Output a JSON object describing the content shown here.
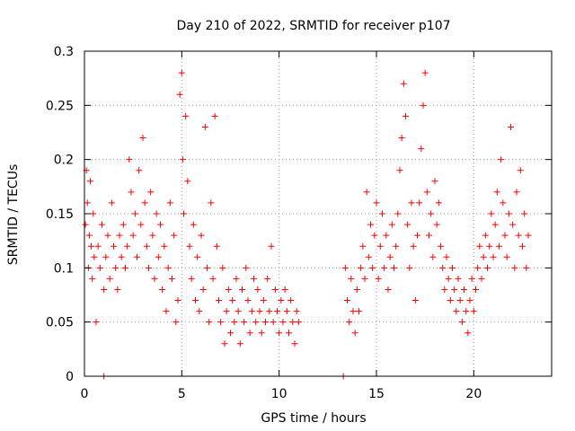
{
  "chart_data": {
    "type": "scatter",
    "title": "Day 210 of 2022, SRMTID for receiver p107",
    "xlabel": "GPS time / hours",
    "ylabel": "SRMTID / TECUs",
    "xlim": [
      0,
      24
    ],
    "ylim": [
      0,
      0.3
    ],
    "x_ticks": [
      0,
      5,
      10,
      15,
      20
    ],
    "x_tick_labels": [
      "0",
      "5",
      "10",
      "15",
      "20"
    ],
    "y_ticks": [
      0,
      0.05,
      0.1,
      0.15,
      0.2,
      0.25,
      0.3
    ],
    "y_tick_labels": [
      "0",
      "0.05",
      "0.1",
      "0.15",
      "0.2",
      "0.25",
      "0.3"
    ],
    "grid": true,
    "marker": "+",
    "color": "#ff0000",
    "series": [
      {
        "name": "SRMTID",
        "points": [
          [
            0.05,
            0.14
          ],
          [
            0.1,
            0.19
          ],
          [
            0.15,
            0.16
          ],
          [
            0.2,
            0.1
          ],
          [
            0.25,
            0.13
          ],
          [
            0.3,
            0.18
          ],
          [
            0.35,
            0.12
          ],
          [
            0.4,
            0.09
          ],
          [
            0.45,
            0.15
          ],
          [
            0.5,
            0.11
          ],
          [
            0.6,
            0.05
          ],
          [
            0.7,
            0.12
          ],
          [
            0.8,
            0.1
          ],
          [
            0.9,
            0.14
          ],
          [
            1.0,
            0.08
          ],
          [
            1.0,
            0.0
          ],
          [
            1.1,
            0.11
          ],
          [
            1.2,
            0.13
          ],
          [
            1.3,
            0.09
          ],
          [
            1.4,
            0.16
          ],
          [
            1.5,
            0.12
          ],
          [
            1.6,
            0.1
          ],
          [
            1.7,
            0.08
          ],
          [
            1.8,
            0.13
          ],
          [
            1.9,
            0.11
          ],
          [
            2.0,
            0.14
          ],
          [
            2.1,
            0.1
          ],
          [
            2.2,
            0.12
          ],
          [
            2.3,
            0.2
          ],
          [
            2.4,
            0.17
          ],
          [
            2.5,
            0.13
          ],
          [
            2.6,
            0.15
          ],
          [
            2.7,
            0.11
          ],
          [
            2.8,
            0.19
          ],
          [
            2.9,
            0.14
          ],
          [
            3.0,
            0.22
          ],
          [
            3.1,
            0.16
          ],
          [
            3.2,
            0.12
          ],
          [
            3.3,
            0.1
          ],
          [
            3.4,
            0.17
          ],
          [
            3.5,
            0.13
          ],
          [
            3.6,
            0.09
          ],
          [
            3.7,
            0.15
          ],
          [
            3.8,
            0.11
          ],
          [
            3.9,
            0.14
          ],
          [
            4.0,
            0.08
          ],
          [
            4.1,
            0.12
          ],
          [
            4.2,
            0.06
          ],
          [
            4.3,
            0.1
          ],
          [
            4.4,
            0.16
          ],
          [
            4.5,
            0.09
          ],
          [
            4.6,
            0.13
          ],
          [
            4.7,
            0.05
          ],
          [
            4.8,
            0.07
          ],
          [
            4.9,
            0.26
          ],
          [
            5.0,
            0.28
          ],
          [
            5.05,
            0.2
          ],
          [
            5.1,
            0.15
          ],
          [
            5.2,
            0.24
          ],
          [
            5.3,
            0.18
          ],
          [
            5.4,
            0.12
          ],
          [
            5.5,
            0.09
          ],
          [
            5.6,
            0.14
          ],
          [
            5.7,
            0.07
          ],
          [
            5.8,
            0.11
          ],
          [
            5.9,
            0.06
          ],
          [
            6.0,
            0.13
          ],
          [
            6.1,
            0.08
          ],
          [
            6.2,
            0.23
          ],
          [
            6.3,
            0.1
          ],
          [
            6.4,
            0.05
          ],
          [
            6.5,
            0.16
          ],
          [
            6.6,
            0.09
          ],
          [
            6.7,
            0.24
          ],
          [
            6.8,
            0.12
          ],
          [
            6.9,
            0.07
          ],
          [
            7.0,
            0.05
          ],
          [
            7.1,
            0.1
          ],
          [
            7.2,
            0.03
          ],
          [
            7.3,
            0.06
          ],
          [
            7.4,
            0.08
          ],
          [
            7.5,
            0.04
          ],
          [
            7.6,
            0.07
          ],
          [
            7.7,
            0.05
          ],
          [
            7.8,
            0.09
          ],
          [
            7.9,
            0.06
          ],
          [
            8.0,
            0.03
          ],
          [
            8.1,
            0.08
          ],
          [
            8.2,
            0.05
          ],
          [
            8.3,
            0.1
          ],
          [
            8.4,
            0.07
          ],
          [
            8.5,
            0.04
          ],
          [
            8.6,
            0.06
          ],
          [
            8.7,
            0.09
          ],
          [
            8.8,
            0.05
          ],
          [
            8.9,
            0.08
          ],
          [
            9.0,
            0.06
          ],
          [
            9.1,
            0.04
          ],
          [
            9.2,
            0.07
          ],
          [
            9.3,
            0.05
          ],
          [
            9.4,
            0.09
          ],
          [
            9.5,
            0.06
          ],
          [
            9.6,
            0.12
          ],
          [
            9.7,
            0.05
          ],
          [
            9.8,
            0.08
          ],
          [
            9.9,
            0.06
          ],
          [
            10.0,
            0.04
          ],
          [
            10.1,
            0.07
          ],
          [
            10.2,
            0.05
          ],
          [
            10.3,
            0.08
          ],
          [
            10.4,
            0.06
          ],
          [
            10.5,
            0.04
          ],
          [
            10.6,
            0.07
          ],
          [
            10.7,
            0.05
          ],
          [
            10.8,
            0.03
          ],
          [
            10.9,
            0.06
          ],
          [
            11.0,
            0.05
          ],
          [
            13.3,
            0.0
          ],
          [
            13.4,
            0.1
          ],
          [
            13.5,
            0.07
          ],
          [
            13.6,
            0.05
          ],
          [
            13.7,
            0.09
          ],
          [
            13.8,
            0.06
          ],
          [
            13.9,
            0.04
          ],
          [
            14.0,
            0.08
          ],
          [
            14.1,
            0.06
          ],
          [
            14.2,
            0.1
          ],
          [
            14.3,
            0.12
          ],
          [
            14.4,
            0.09
          ],
          [
            14.5,
            0.17
          ],
          [
            14.6,
            0.11
          ],
          [
            14.7,
            0.14
          ],
          [
            14.8,
            0.1
          ],
          [
            14.9,
            0.13
          ],
          [
            15.0,
            0.16
          ],
          [
            15.1,
            0.09
          ],
          [
            15.2,
            0.12
          ],
          [
            15.3,
            0.15
          ],
          [
            15.4,
            0.1
          ],
          [
            15.5,
            0.13
          ],
          [
            15.6,
            0.08
          ],
          [
            15.7,
            0.11
          ],
          [
            15.8,
            0.14
          ],
          [
            15.9,
            0.1
          ],
          [
            16.0,
            0.12
          ],
          [
            16.1,
            0.15
          ],
          [
            16.2,
            0.19
          ],
          [
            16.3,
            0.22
          ],
          [
            16.4,
            0.27
          ],
          [
            16.5,
            0.24
          ],
          [
            16.6,
            0.14
          ],
          [
            16.7,
            0.1
          ],
          [
            16.8,
            0.16
          ],
          [
            16.9,
            0.12
          ],
          [
            17.0,
            0.07
          ],
          [
            17.1,
            0.13
          ],
          [
            17.2,
            0.16
          ],
          [
            17.3,
            0.21
          ],
          [
            17.4,
            0.25
          ],
          [
            17.5,
            0.28
          ],
          [
            17.6,
            0.17
          ],
          [
            17.7,
            0.13
          ],
          [
            17.8,
            0.15
          ],
          [
            17.9,
            0.11
          ],
          [
            18.0,
            0.18
          ],
          [
            18.1,
            0.14
          ],
          [
            18.2,
            0.16
          ],
          [
            18.3,
            0.12
          ],
          [
            18.4,
            0.1
          ],
          [
            18.5,
            0.08
          ],
          [
            18.6,
            0.11
          ],
          [
            18.7,
            0.09
          ],
          [
            18.8,
            0.07
          ],
          [
            18.9,
            0.1
          ],
          [
            19.0,
            0.08
          ],
          [
            19.1,
            0.06
          ],
          [
            19.2,
            0.09
          ],
          [
            19.3,
            0.07
          ],
          [
            19.4,
            0.05
          ],
          [
            19.5,
            0.08
          ],
          [
            19.6,
            0.06
          ],
          [
            19.7,
            0.04
          ],
          [
            19.8,
            0.07
          ],
          [
            19.9,
            0.09
          ],
          [
            20.0,
            0.06
          ],
          [
            20.1,
            0.08
          ],
          [
            20.2,
            0.1
          ],
          [
            20.3,
            0.12
          ],
          [
            20.4,
            0.09
          ],
          [
            20.5,
            0.11
          ],
          [
            20.6,
            0.13
          ],
          [
            20.7,
            0.1
          ],
          [
            20.8,
            0.12
          ],
          [
            20.9,
            0.15
          ],
          [
            21.0,
            0.11
          ],
          [
            21.1,
            0.14
          ],
          [
            21.2,
            0.17
          ],
          [
            21.3,
            0.12
          ],
          [
            21.4,
            0.2
          ],
          [
            21.5,
            0.16
          ],
          [
            21.6,
            0.13
          ],
          [
            21.7,
            0.11
          ],
          [
            21.8,
            0.15
          ],
          [
            21.9,
            0.23
          ],
          [
            22.0,
            0.14
          ],
          [
            22.1,
            0.1
          ],
          [
            22.2,
            0.17
          ],
          [
            22.3,
            0.13
          ],
          [
            22.4,
            0.19
          ],
          [
            22.5,
            0.12
          ],
          [
            22.6,
            0.15
          ],
          [
            22.7,
            0.1
          ],
          [
            22.8,
            0.13
          ]
        ]
      }
    ]
  }
}
